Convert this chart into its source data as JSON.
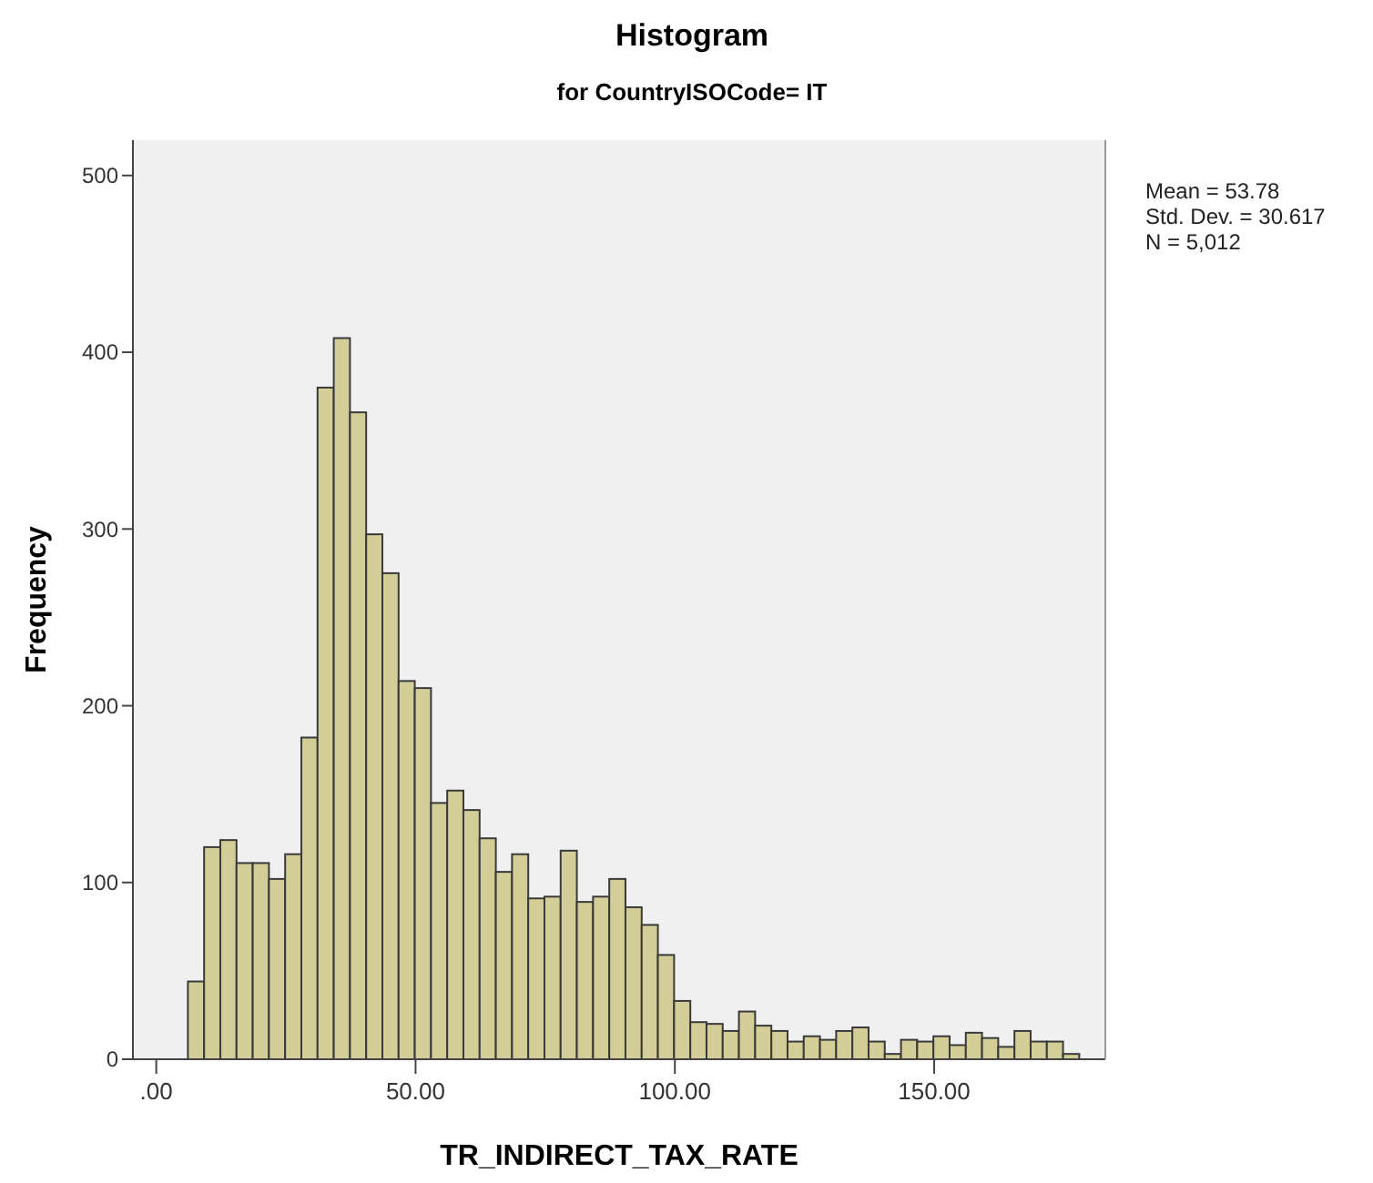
{
  "chart_data": {
    "type": "histogram",
    "title": "Histogram",
    "subtitle": "for CountryISOCode= IT",
    "xlabel": "TR_INDIRECT_TAX_RATE",
    "ylabel": "Frequency",
    "bins": [
      6.1,
      9.225,
      12.35,
      15.475,
      18.6,
      21.725,
      24.85,
      27.975,
      31.1,
      34.225,
      37.35,
      40.475,
      43.6,
      46.725,
      49.85,
      52.975,
      56.1,
      59.225,
      62.35,
      65.475,
      68.6,
      71.725,
      74.85,
      77.975,
      81.1,
      84.225,
      87.35,
      90.475,
      93.6,
      96.725,
      99.85,
      102.975,
      106.1,
      109.225,
      112.35,
      115.475,
      118.6,
      121.725,
      124.85,
      127.975,
      131.1,
      134.225,
      137.35,
      140.475,
      143.6,
      146.725,
      149.85,
      152.975,
      156.1,
      159.225,
      162.35,
      165.475,
      168.6,
      171.725,
      174.85,
      177.975
    ],
    "values": [
      44,
      120,
      124,
      111,
      111,
      102,
      116,
      182,
      380,
      408,
      366,
      297,
      275,
      214,
      210,
      145,
      152,
      141,
      125,
      106,
      116,
      91,
      92,
      118,
      89,
      92,
      102,
      86,
      76,
      59,
      33,
      21,
      20,
      16,
      27,
      19,
      16,
      10,
      13,
      11,
      16,
      18,
      10,
      3,
      11,
      10,
      13,
      8,
      15,
      12,
      7,
      16,
      10,
      10,
      3
    ],
    "color": "#d3ce97",
    "xlim": [
      -4.5,
      183
    ],
    "ylim": [
      0,
      520
    ],
    "xticks": [
      {
        "value": 0,
        "label": ".00"
      },
      {
        "value": 50,
        "label": "50.00"
      },
      {
        "value": 100,
        "label": "100.00"
      },
      {
        "value": 150,
        "label": "150.00"
      }
    ],
    "yticks": [
      0,
      100,
      200,
      300,
      400,
      500
    ],
    "grid": false,
    "annotations": [
      "Mean = 53.78",
      "Std. Dev. = 30.617",
      "N = 5,012"
    ]
  }
}
